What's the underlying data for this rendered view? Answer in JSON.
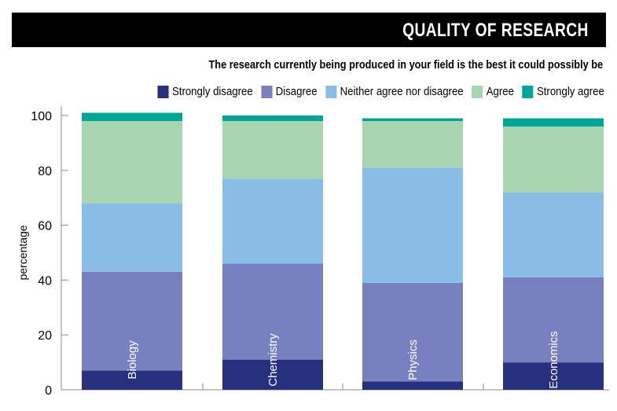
{
  "header": {
    "title": "QUALITY OF RESEARCH"
  },
  "chart_data": {
    "type": "bar",
    "stacked": true,
    "title": "QUALITY OF RESEARCH",
    "subtitle": "The research currently being produced in your field is the best it could possibly be",
    "ylabel": "percentage",
    "xlabel": "",
    "ylim": [
      0,
      100
    ],
    "yticks": [
      0,
      20,
      40,
      60,
      80,
      100
    ],
    "categories": [
      "Biology",
      "Chemistry",
      "Physics",
      "Economics"
    ],
    "legend_position": "top",
    "grid": false,
    "series": [
      {
        "name": "Strongly disagree",
        "color": "#27307f",
        "values": [
          7,
          11,
          3,
          10
        ]
      },
      {
        "name": "Disagree",
        "color": "#7880c0",
        "values": [
          36,
          35,
          36,
          31
        ]
      },
      {
        "name": "Neither agree nor disagree",
        "color": "#87bde6",
        "values": [
          25,
          31,
          42,
          31
        ]
      },
      {
        "name": "Agree",
        "color": "#a8d5b0",
        "values": [
          30,
          21,
          17,
          24
        ]
      },
      {
        "name": "Strongly agree",
        "color": "#00a595",
        "values": [
          3,
          2,
          1,
          3
        ]
      }
    ]
  }
}
